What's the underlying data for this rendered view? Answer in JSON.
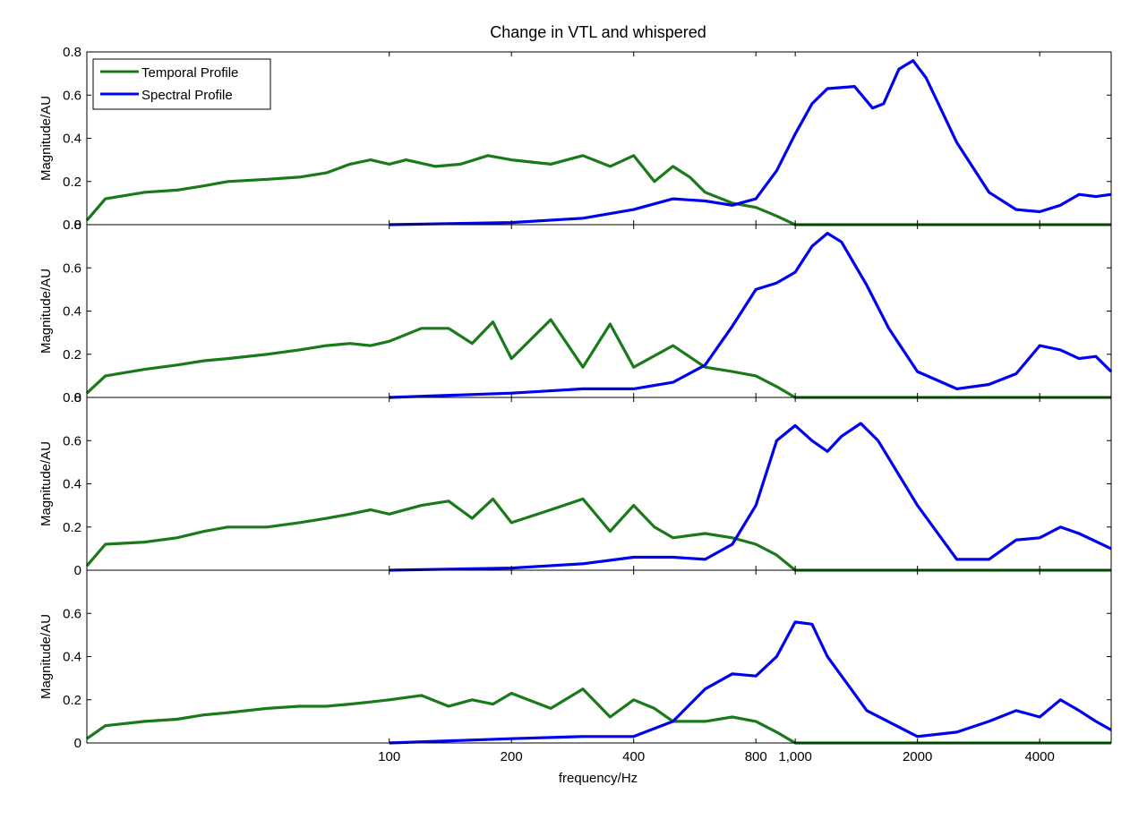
{
  "chart_data": {
    "type": "line",
    "title": "Change in VTL and whispered",
    "xlabel": "frequency/Hz",
    "ylabel": "Magnitude/AU",
    "x_scale": "log",
    "x_tick_labels": [
      {
        "value": 100,
        "label": "100"
      },
      {
        "value": 200,
        "label": "200"
      },
      {
        "value": 400,
        "label": "400"
      },
      {
        "value": 800,
        "label": "800"
      },
      {
        "value": 1000,
        "label": "1,000"
      },
      {
        "value": 2000,
        "label": "2000"
      },
      {
        "value": 4000,
        "label": "4000"
      }
    ],
    "xlim": [
      18,
      6000
    ],
    "grid": false,
    "legend": {
      "position": "top-left",
      "entries": [
        "Temporal Profile",
        "Spectral Profile"
      ]
    },
    "colors": {
      "Temporal Profile": "#1a7a1a",
      "Spectral Profile": "#0000ee"
    },
    "panels": [
      {
        "ylim": [
          0,
          0.8
        ],
        "y_ticks": [
          "0",
          "0.2",
          "0.4",
          "0.6",
          "0.8"
        ],
        "series": [
          {
            "name": "Temporal Profile",
            "points": [
              [
                18,
                0.02
              ],
              [
                20,
                0.12
              ],
              [
                25,
                0.15
              ],
              [
                30,
                0.16
              ],
              [
                35,
                0.18
              ],
              [
                40,
                0.2
              ],
              [
                50,
                0.21
              ],
              [
                60,
                0.22
              ],
              [
                70,
                0.24
              ],
              [
                80,
                0.28
              ],
              [
                90,
                0.3
              ],
              [
                100,
                0.28
              ],
              [
                110,
                0.3
              ],
              [
                130,
                0.27
              ],
              [
                150,
                0.28
              ],
              [
                175,
                0.32
              ],
              [
                200,
                0.3
              ],
              [
                250,
                0.28
              ],
              [
                300,
                0.32
              ],
              [
                350,
                0.27
              ],
              [
                400,
                0.32
              ],
              [
                450,
                0.2
              ],
              [
                500,
                0.27
              ],
              [
                550,
                0.22
              ],
              [
                600,
                0.15
              ],
              [
                700,
                0.1
              ],
              [
                800,
                0.08
              ],
              [
                900,
                0.04
              ],
              [
                1000,
                0.0
              ],
              [
                6000,
                0.0
              ]
            ]
          },
          {
            "name": "Spectral Profile",
            "points": [
              [
                100,
                0.0
              ],
              [
                200,
                0.01
              ],
              [
                300,
                0.03
              ],
              [
                400,
                0.07
              ],
              [
                500,
                0.12
              ],
              [
                600,
                0.11
              ],
              [
                700,
                0.09
              ],
              [
                800,
                0.12
              ],
              [
                900,
                0.25
              ],
              [
                1000,
                0.42
              ],
              [
                1100,
                0.56
              ],
              [
                1200,
                0.63
              ],
              [
                1400,
                0.64
              ],
              [
                1550,
                0.54
              ],
              [
                1650,
                0.56
              ],
              [
                1800,
                0.72
              ],
              [
                1950,
                0.76
              ],
              [
                2100,
                0.68
              ],
              [
                2500,
                0.38
              ],
              [
                3000,
                0.15
              ],
              [
                3500,
                0.07
              ],
              [
                4000,
                0.06
              ],
              [
                4500,
                0.09
              ],
              [
                5000,
                0.14
              ],
              [
                5500,
                0.13
              ],
              [
                6000,
                0.14
              ]
            ]
          }
        ]
      },
      {
        "ylim": [
          0,
          0.8
        ],
        "y_ticks": [
          "0",
          "0.2",
          "0.4",
          "0.6",
          "0.8"
        ],
        "series": [
          {
            "name": "Temporal Profile",
            "points": [
              [
                18,
                0.02
              ],
              [
                20,
                0.1
              ],
              [
                25,
                0.13
              ],
              [
                30,
                0.15
              ],
              [
                35,
                0.17
              ],
              [
                40,
                0.18
              ],
              [
                50,
                0.2
              ],
              [
                60,
                0.22
              ],
              [
                70,
                0.24
              ],
              [
                80,
                0.25
              ],
              [
                90,
                0.24
              ],
              [
                100,
                0.26
              ],
              [
                120,
                0.32
              ],
              [
                140,
                0.32
              ],
              [
                160,
                0.25
              ],
              [
                180,
                0.35
              ],
              [
                200,
                0.18
              ],
              [
                250,
                0.36
              ],
              [
                300,
                0.14
              ],
              [
                350,
                0.34
              ],
              [
                400,
                0.14
              ],
              [
                500,
                0.24
              ],
              [
                600,
                0.14
              ],
              [
                700,
                0.12
              ],
              [
                800,
                0.1
              ],
              [
                900,
                0.05
              ],
              [
                1000,
                0.0
              ],
              [
                6000,
                0.0
              ]
            ]
          },
          {
            "name": "Spectral Profile",
            "points": [
              [
                100,
                0.0
              ],
              [
                200,
                0.02
              ],
              [
                300,
                0.04
              ],
              [
                400,
                0.04
              ],
              [
                500,
                0.07
              ],
              [
                600,
                0.15
              ],
              [
                700,
                0.33
              ],
              [
                800,
                0.5
              ],
              [
                900,
                0.53
              ],
              [
                1000,
                0.58
              ],
              [
                1100,
                0.7
              ],
              [
                1200,
                0.76
              ],
              [
                1300,
                0.72
              ],
              [
                1500,
                0.52
              ],
              [
                1700,
                0.32
              ],
              [
                2000,
                0.12
              ],
              [
                2500,
                0.04
              ],
              [
                3000,
                0.06
              ],
              [
                3500,
                0.11
              ],
              [
                4000,
                0.24
              ],
              [
                4500,
                0.22
              ],
              [
                5000,
                0.18
              ],
              [
                5500,
                0.19
              ],
              [
                6000,
                0.12
              ]
            ]
          }
        ]
      },
      {
        "ylim": [
          0,
          0.8
        ],
        "y_ticks": [
          "0",
          "0.2",
          "0.4",
          "0.6",
          "0.8"
        ],
        "series": [
          {
            "name": "Temporal Profile",
            "points": [
              [
                18,
                0.02
              ],
              [
                20,
                0.12
              ],
              [
                25,
                0.13
              ],
              [
                30,
                0.15
              ],
              [
                35,
                0.18
              ],
              [
                40,
                0.2
              ],
              [
                50,
                0.2
              ],
              [
                60,
                0.22
              ],
              [
                70,
                0.24
              ],
              [
                80,
                0.26
              ],
              [
                90,
                0.28
              ],
              [
                100,
                0.26
              ],
              [
                120,
                0.3
              ],
              [
                140,
                0.32
              ],
              [
                160,
                0.24
              ],
              [
                180,
                0.33
              ],
              [
                200,
                0.22
              ],
              [
                250,
                0.28
              ],
              [
                300,
                0.33
              ],
              [
                350,
                0.18
              ],
              [
                400,
                0.3
              ],
              [
                450,
                0.2
              ],
              [
                500,
                0.15
              ],
              [
                600,
                0.17
              ],
              [
                700,
                0.15
              ],
              [
                800,
                0.12
              ],
              [
                900,
                0.07
              ],
              [
                1000,
                0.0
              ],
              [
                6000,
                0.0
              ]
            ]
          },
          {
            "name": "Spectral Profile",
            "points": [
              [
                100,
                0.0
              ],
              [
                200,
                0.01
              ],
              [
                300,
                0.03
              ],
              [
                400,
                0.06
              ],
              [
                500,
                0.06
              ],
              [
                600,
                0.05
              ],
              [
                700,
                0.12
              ],
              [
                800,
                0.3
              ],
              [
                900,
                0.6
              ],
              [
                1000,
                0.67
              ],
              [
                1100,
                0.6
              ],
              [
                1200,
                0.55
              ],
              [
                1300,
                0.62
              ],
              [
                1450,
                0.68
              ],
              [
                1600,
                0.6
              ],
              [
                2000,
                0.3
              ],
              [
                2500,
                0.05
              ],
              [
                3000,
                0.05
              ],
              [
                3500,
                0.14
              ],
              [
                4000,
                0.15
              ],
              [
                4500,
                0.2
              ],
              [
                5000,
                0.17
              ],
              [
                6000,
                0.1
              ]
            ]
          }
        ]
      },
      {
        "ylim": [
          0,
          0.8
        ],
        "y_ticks": [
          "0",
          "0.2",
          "0.4",
          "0.6"
        ],
        "series": [
          {
            "name": "Temporal Profile",
            "points": [
              [
                18,
                0.02
              ],
              [
                20,
                0.08
              ],
              [
                25,
                0.1
              ],
              [
                30,
                0.11
              ],
              [
                35,
                0.13
              ],
              [
                40,
                0.14
              ],
              [
                50,
                0.16
              ],
              [
                60,
                0.17
              ],
              [
                70,
                0.17
              ],
              [
                80,
                0.18
              ],
              [
                90,
                0.19
              ],
              [
                100,
                0.2
              ],
              [
                120,
                0.22
              ],
              [
                140,
                0.17
              ],
              [
                160,
                0.2
              ],
              [
                180,
                0.18
              ],
              [
                200,
                0.23
              ],
              [
                250,
                0.16
              ],
              [
                300,
                0.25
              ],
              [
                350,
                0.12
              ],
              [
                400,
                0.2
              ],
              [
                450,
                0.16
              ],
              [
                500,
                0.1
              ],
              [
                600,
                0.1
              ],
              [
                700,
                0.12
              ],
              [
                800,
                0.1
              ],
              [
                900,
                0.05
              ],
              [
                1000,
                0.0
              ],
              [
                6000,
                0.0
              ]
            ]
          },
          {
            "name": "Spectral Profile",
            "points": [
              [
                100,
                0.0
              ],
              [
                200,
                0.02
              ],
              [
                300,
                0.03
              ],
              [
                400,
                0.03
              ],
              [
                500,
                0.1
              ],
              [
                600,
                0.25
              ],
              [
                700,
                0.32
              ],
              [
                800,
                0.31
              ],
              [
                900,
                0.4
              ],
              [
                1000,
                0.56
              ],
              [
                1100,
                0.55
              ],
              [
                1200,
                0.4
              ],
              [
                1500,
                0.15
              ],
              [
                2000,
                0.03
              ],
              [
                2500,
                0.05
              ],
              [
                3000,
                0.1
              ],
              [
                3500,
                0.15
              ],
              [
                4000,
                0.12
              ],
              [
                4500,
                0.2
              ],
              [
                5000,
                0.15
              ],
              [
                5500,
                0.1
              ],
              [
                6000,
                0.06
              ]
            ]
          }
        ]
      }
    ]
  }
}
